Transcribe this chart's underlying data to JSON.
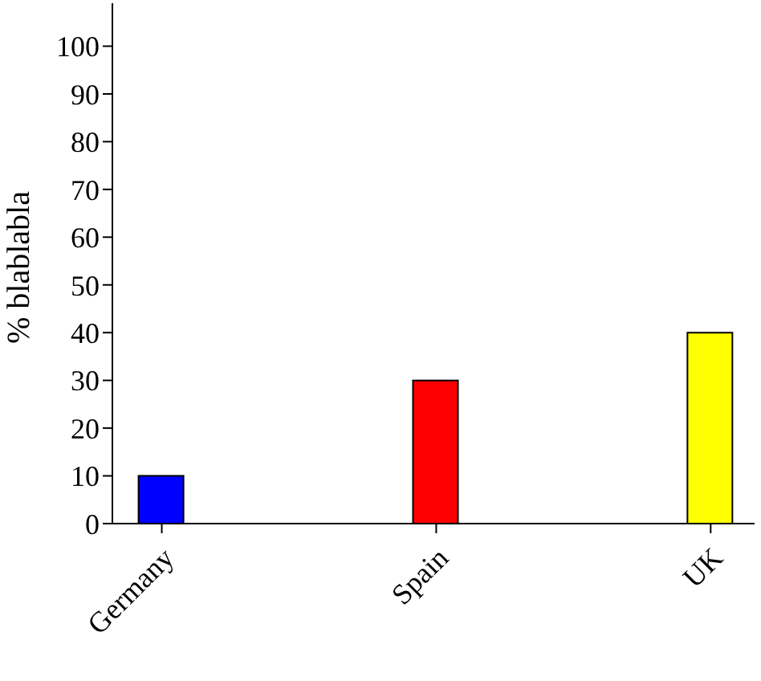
{
  "chart_data": {
    "type": "bar",
    "ylabel": "% blablabla",
    "categories": [
      "Germany",
      "Spain",
      "UK"
    ],
    "values": [
      10,
      30,
      40
    ],
    "colors": [
      "#0000ff",
      "#ff0000",
      "#ffff00"
    ],
    "ylim": [
      0,
      109
    ],
    "yticks": [
      0,
      10,
      20,
      30,
      40,
      50,
      60,
      70,
      80,
      90,
      100
    ],
    "grid": false,
    "legend": false
  }
}
